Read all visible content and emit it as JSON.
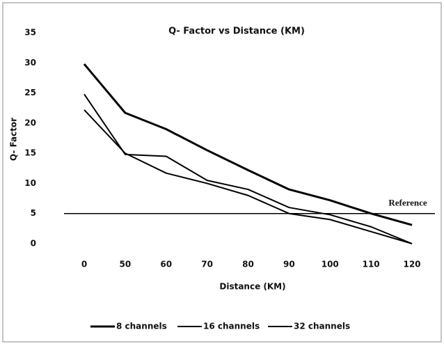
{
  "chart_data": {
    "type": "line",
    "title": "Q- Factor vs Distance (KM)",
    "x_label": "Distance (KM)",
    "y_label": "Q- Factor",
    "categories": [
      "0",
      "50",
      "60",
      "70",
      "80",
      "90",
      "100",
      "110",
      "120"
    ],
    "series": [
      {
        "name": "8 channels",
        "color": "#000000",
        "values": [
          29.8,
          21.7,
          19,
          15.5,
          12.2,
          9,
          7.2,
          5,
          3.1
        ]
      },
      {
        "name": "16 channels",
        "color": "#000000",
        "values": [
          24.8,
          14.8,
          14.5,
          10.5,
          9,
          6,
          4.8,
          2.8,
          0
        ]
      },
      {
        "name": "32 channels",
        "color": "#000000",
        "values": [
          22.2,
          15,
          11.7,
          10,
          8,
          5,
          4,
          2,
          0
        ]
      }
    ],
    "reference": {
      "value": 5,
      "label": "Reference"
    },
    "ylim": [
      0,
      35
    ],
    "yticks": [
      0,
      5,
      10,
      15,
      20,
      25,
      30,
      35
    ],
    "grid": false,
    "legend": "bottom"
  }
}
